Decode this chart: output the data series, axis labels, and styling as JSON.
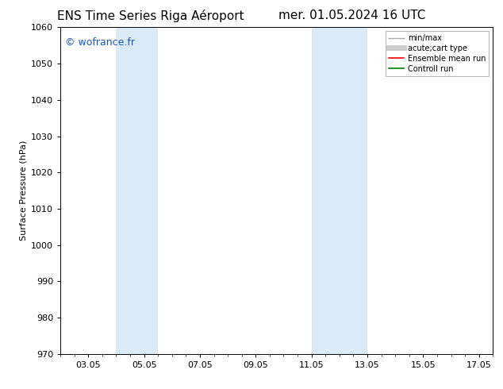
{
  "title_left": "ENS Time Series Riga Aéroport",
  "title_right": "mer. 01.05.2024 16 UTC",
  "ylabel": "Surface Pressure (hPa)",
  "ylim": [
    970,
    1060
  ],
  "yticks": [
    970,
    980,
    990,
    1000,
    1010,
    1020,
    1030,
    1040,
    1050,
    1060
  ],
  "xtick_labels": [
    "03.05",
    "05.05",
    "07.05",
    "09.05",
    "11.05",
    "13.05",
    "15.05",
    "17.05"
  ],
  "xtick_positions": [
    3,
    5,
    7,
    9,
    11,
    13,
    15,
    17
  ],
  "xlim": [
    2.0,
    17.5
  ],
  "shaded_bands": [
    {
      "xmin": 4.0,
      "xmax": 5.5
    },
    {
      "xmin": 11.0,
      "xmax": 13.0
    }
  ],
  "band_color": "#daeaf7",
  "background_color": "#ffffff",
  "watermark_text": "© wofrance.fr",
  "watermark_color": "#1a56cc",
  "legend_entries": [
    {
      "label": "min/max",
      "color": "#aaaaaa",
      "lw": 1.0
    },
    {
      "label": "acute;cart type",
      "color": "#cccccc",
      "lw": 5.0
    },
    {
      "label": "Ensemble mean run",
      "color": "#ff0000",
      "lw": 1.2
    },
    {
      "label": "Controll run",
      "color": "#008000",
      "lw": 1.2
    }
  ],
  "title_fontsize": 11,
  "ylabel_fontsize": 8,
  "tick_fontsize": 8,
  "legend_fontsize": 7,
  "watermark_fontsize": 9
}
